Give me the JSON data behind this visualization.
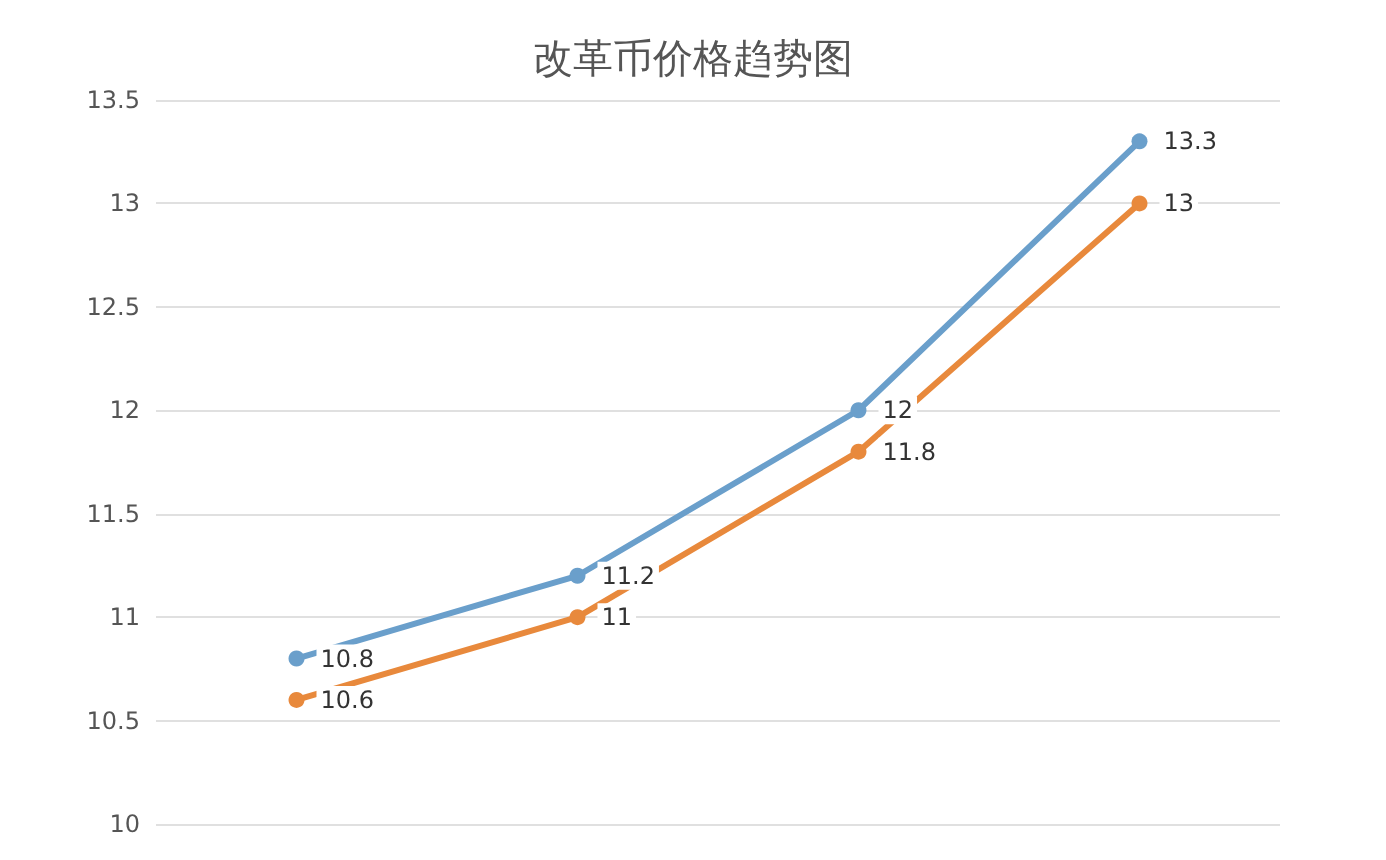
{
  "chart_data": {
    "type": "line",
    "title": "改革币价格趋势图",
    "categories": [
      null,
      null,
      null,
      null
    ],
    "series": [
      {
        "color": "#6a9fcb",
        "values": [
          10.8,
          11.2,
          12,
          13.3
        ]
      },
      {
        "color": "#e8893c",
        "values": [
          10.6,
          11,
          11.8,
          13
        ]
      }
    ],
    "ylim": [
      10,
      13.5
    ],
    "yticks": [
      10,
      10.5,
      11,
      11.5,
      12,
      12.5,
      13,
      13.5
    ],
    "grid": "y",
    "marker": "circle",
    "line_style": "solid",
    "data_labels": true,
    "tick_labels": "y"
  }
}
